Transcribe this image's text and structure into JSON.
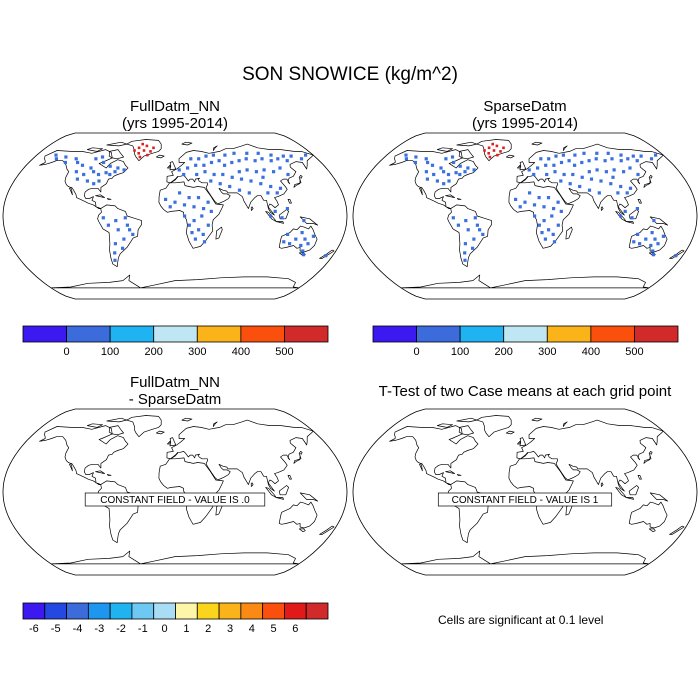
{
  "main_title": "SON SNOWICE (kg/m^2)",
  "colors": {
    "land_outline": "#000000",
    "dot_blue": "#3a70e0",
    "dot_red": "#dd2020"
  },
  "panels": {
    "top_left": {
      "title_line1": "FullDatm_NN",
      "title_line2": "(yrs 1995-2014)"
    },
    "top_right": {
      "title_line1": "SparseDatm",
      "title_line2": "(yrs 1995-2014)"
    },
    "bottom_left": {
      "title_line1": "FullDatm_NN",
      "title_line2": "- SparseDatm",
      "constant_label": "CONSTANT FIELD - VALUE IS .0"
    },
    "bottom_right": {
      "title_line1": "T-Test of two Case means at each grid point",
      "constant_label": "CONSTANT FIELD - VALUE IS 1",
      "significance_note": "Cells are significant at 0.1 level"
    }
  },
  "chart_data": [
    {
      "type": "heatmap",
      "title": "FullDatm_NN (yrs 1995-2014)",
      "colorbar": {
        "colors": [
          "#3c19f0",
          "#3c6cdc",
          "#1fb3f2",
          "#bfe6f3",
          "#fbb31a",
          "#fb4f0d",
          "#d02a2a"
        ],
        "tick_labels": [
          "0",
          "100",
          "200",
          "300",
          "400",
          "500"
        ]
      }
    },
    {
      "type": "heatmap",
      "title": "SparseDatm (yrs 1995-2014)",
      "colorbar": {
        "colors": [
          "#3c19f0",
          "#3c6cdc",
          "#1fb3f2",
          "#bfe6f3",
          "#fbb31a",
          "#fb4f0d",
          "#d02a2a"
        ],
        "tick_labels": [
          "0",
          "100",
          "200",
          "300",
          "400",
          "500"
        ]
      }
    },
    {
      "type": "heatmap",
      "title": "FullDatm_NN - SparseDatm",
      "constant_value": 0,
      "colorbar": {
        "colors": [
          "#3c19f0",
          "#2449e2",
          "#3c6cdc",
          "#1d96ef",
          "#1fb3f2",
          "#6ec8f4",
          "#a9dcf5",
          "#fdf6a8",
          "#fbd51b",
          "#fbb31a",
          "#fb8a14",
          "#fb4f0d",
          "#e11919",
          "#d02a2a"
        ],
        "tick_labels": [
          "-6",
          "-5",
          "-4",
          "-3",
          "-2",
          "-1",
          "0",
          "1",
          "2",
          "3",
          "4",
          "5",
          "6"
        ]
      }
    },
    {
      "type": "heatmap",
      "title": "T-Test of two Case means at each grid point",
      "constant_value": 1
    }
  ]
}
